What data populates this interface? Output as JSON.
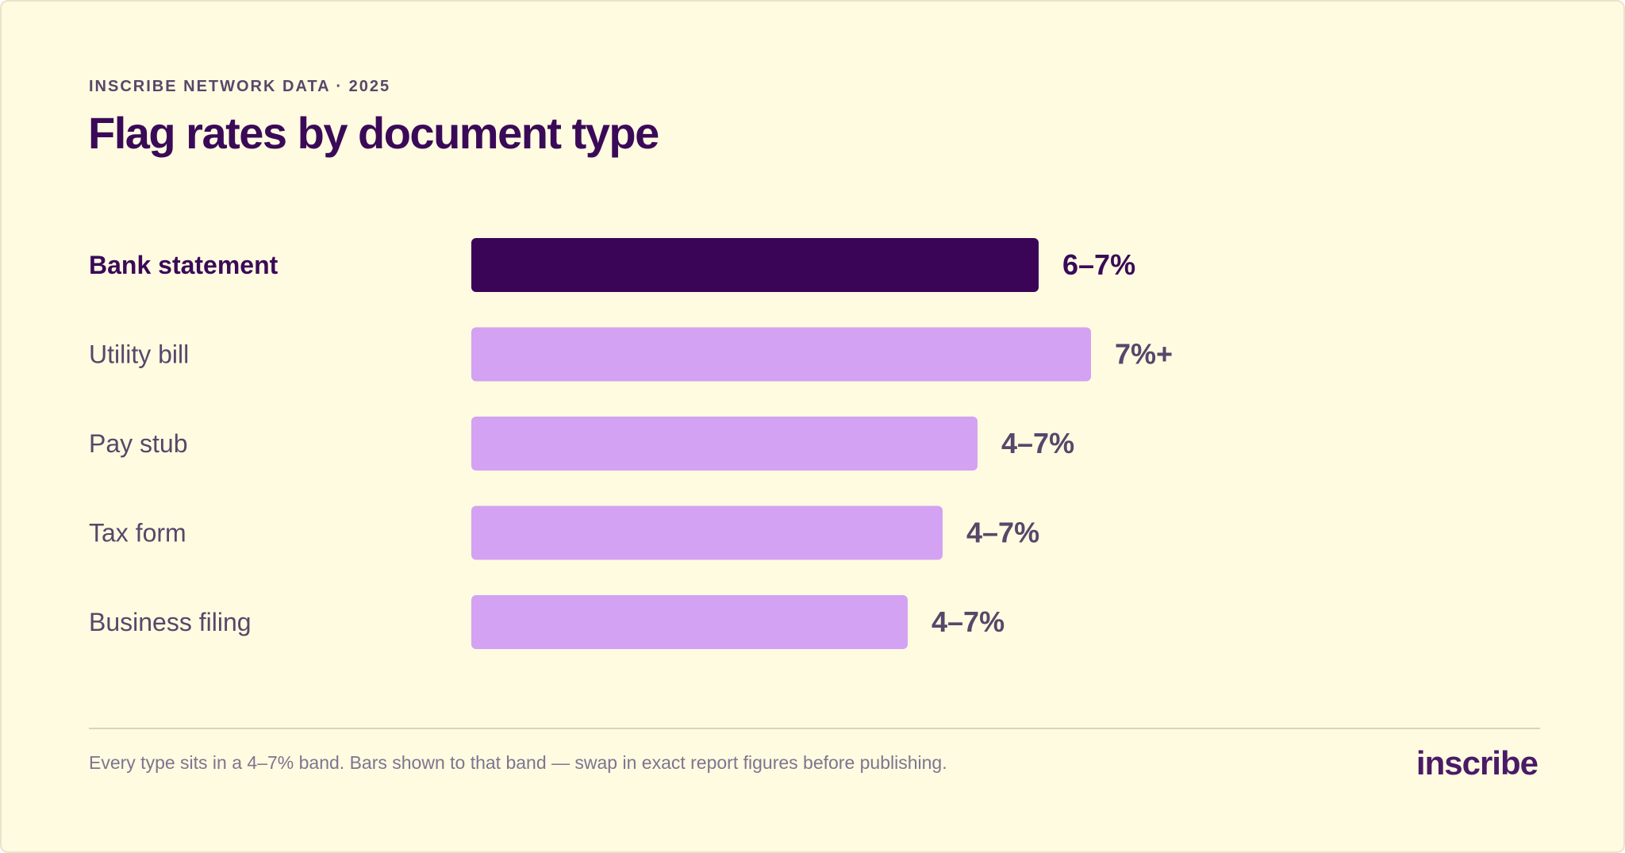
{
  "header": {
    "eyebrow": "INSCRIBE NETWORK DATA · 2025"
  },
  "colors": {
    "highlight_bar": "#3a0557",
    "bar": "#d4a2f2",
    "highlight_text": "#3a0a58",
    "label_text": "#55486a"
  },
  "chart_data": {
    "type": "bar",
    "orientation": "horizontal",
    "title": "Flag rates by document type",
    "xlabel": "",
    "ylabel": "",
    "grid": false,
    "xlim": [
      0,
      9.05
    ],
    "categories": [
      "Bank statement",
      "Utility bill",
      "Pay stub",
      "Tax form",
      "Business filing"
    ],
    "values": [
      6.5,
      7.1,
      5.8,
      5.4,
      5.0
    ],
    "data_labels": [
      "6–7%",
      "7%+",
      "4–7%",
      "4–7%",
      "4–7%"
    ],
    "highlighted": [
      true,
      false,
      false,
      false,
      false
    ]
  },
  "footer": {
    "note": "Every type sits in a 4–7% band. Bars shown to that band — swap in exact report figures before publishing.",
    "brand": "inscribe"
  }
}
